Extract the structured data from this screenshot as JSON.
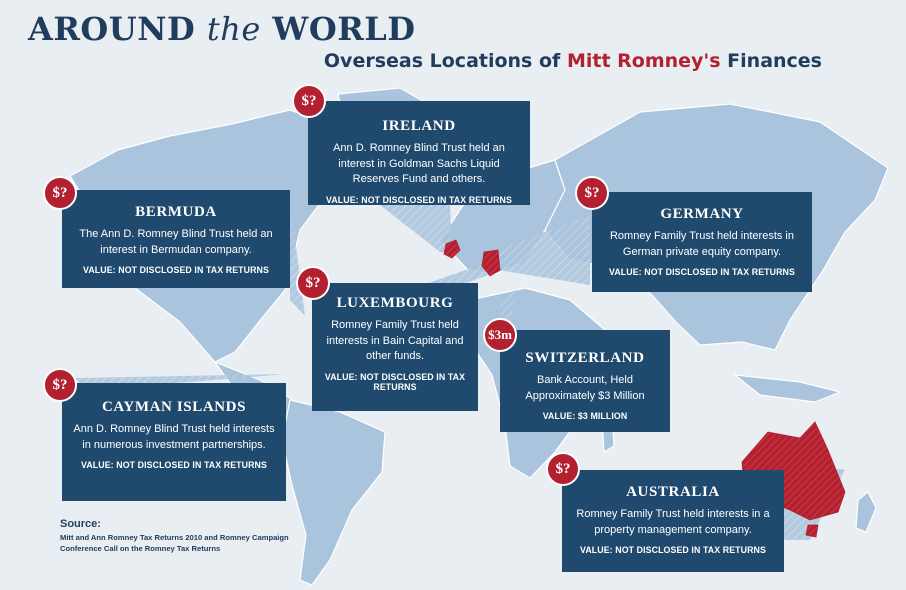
{
  "title": {
    "part1": "AROUND",
    "part2": "the",
    "part3": "WORLD"
  },
  "subtitle": {
    "pre": "Overseas Locations of",
    "name": "Mitt Romney's",
    "post": "Finances"
  },
  "callouts": [
    {
      "country": "IRELAND",
      "badge": "$?",
      "text": "Ann D. Romney Blind Trust held an interest in Goldman Sachs Liquid Reserves Fund and others.",
      "value": "VALUE: NOT DISCLOSED IN TAX RETURNS"
    },
    {
      "country": "BERMUDA",
      "badge": "$?",
      "text": "The Ann D. Romney Blind Trust held an interest in Bermudan company.",
      "value": "VALUE: NOT DISCLOSED IN TAX RETURNS"
    },
    {
      "country": "GERMANY",
      "badge": "$?",
      "text": "Romney Family Trust held interests in German private equity company.",
      "value": "VALUE: NOT DISCLOSED IN TAX RETURNS"
    },
    {
      "country": "LUXEMBOURG",
      "badge": "$?",
      "text": "Romney Family Trust held interests in Bain Capital and other funds.",
      "value": "VALUE: NOT DISCLOSED IN TAX RETURNS"
    },
    {
      "country": "SWITZERLAND",
      "badge": "$3m",
      "text": "Bank Account, Held Approximately $3 Million",
      "value": "VALUE: $3 MILLION"
    },
    {
      "country": "CAYMAN ISLANDS",
      "badge": "$?",
      "text": "Ann D. Romney Blind Trust held interests in numerous investment partnerships.",
      "value": "VALUE: NOT DISCLOSED IN TAX RETURNS"
    },
    {
      "country": "AUSTRALIA",
      "badge": "$?",
      "text": "Romney Family Trust held interests in a property management company.",
      "value": "VALUE: NOT DISCLOSED IN TAX RETURNS"
    }
  ],
  "source": {
    "label": "Source:",
    "text": "Mitt and Ann Romney Tax Returns 2010 and Romney Campaign Conference Call on the Romney Tax Returns"
  },
  "colors": {
    "background": "#e9eef3",
    "land": "#a9c4dc",
    "callout": "#1f4a6e",
    "highlight": "#b3202f",
    "title": "#213d5e"
  }
}
